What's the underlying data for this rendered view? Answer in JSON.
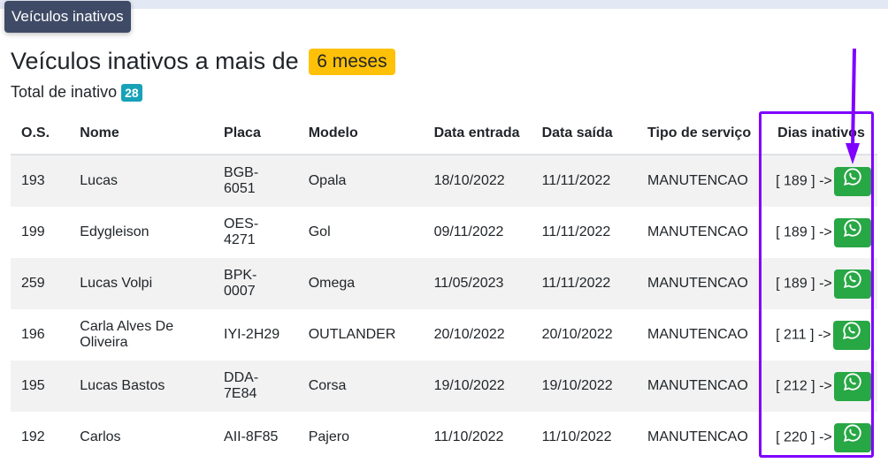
{
  "tab": "Veículos inativos",
  "title": "Veículos inativos a mais de",
  "period_badge": "6 meses",
  "total_label": "Total de inativo",
  "total_count": "28",
  "columns": [
    "O.S.",
    "Nome",
    "Placa",
    "Modelo",
    "Data entrada",
    "Data saída",
    "Tipo de serviço",
    "Dias inativos"
  ],
  "rows": [
    {
      "os": "193",
      "nome": "Lucas",
      "placa": "BGB-6051",
      "modelo": "Opala",
      "entrada": "18/10/2022",
      "saida": "11/11/2022",
      "tipo": "MANUTENCAO",
      "dias": "[ 189 ] ->"
    },
    {
      "os": "199",
      "nome": "Edygleison",
      "placa": "OES-4271",
      "modelo": "Gol",
      "entrada": "09/11/2022",
      "saida": "11/11/2022",
      "tipo": "MANUTENCAO",
      "dias": "[ 189 ] ->"
    },
    {
      "os": "259",
      "nome": "Lucas Volpi",
      "placa": "BPK-0007",
      "modelo": "Omega",
      "entrada": "11/05/2023",
      "saida": "11/11/2022",
      "tipo": "MANUTENCAO",
      "dias": "[ 189 ] ->"
    },
    {
      "os": "196",
      "nome": "Carla Alves De Oliveira",
      "placa": "IYI-2H29",
      "modelo": "OUTLANDER",
      "entrada": "20/10/2022",
      "saida": "20/10/2022",
      "tipo": "MANUTENCAO",
      "dias": "[ 211 ] ->"
    },
    {
      "os": "195",
      "nome": "Lucas Bastos",
      "placa": "DDA-7E84",
      "modelo": "Corsa",
      "entrada": "19/10/2022",
      "saida": "19/10/2022",
      "tipo": "MANUTENCAO",
      "dias": "[ 212 ] ->"
    },
    {
      "os": "192",
      "nome": "Carlos",
      "placa": "AII-8F85",
      "modelo": "Pajero",
      "entrada": "11/10/2022",
      "saida": "11/10/2022",
      "tipo": "MANUTENCAO",
      "dias": "[ 220 ] ->"
    }
  ],
  "colors": {
    "whatsapp": "#28a745",
    "annotation": "#7f00ff",
    "badge_period": "#ffc107",
    "badge_total": "#17a2b8"
  },
  "icons": {
    "action": "whatsapp-icon"
  }
}
